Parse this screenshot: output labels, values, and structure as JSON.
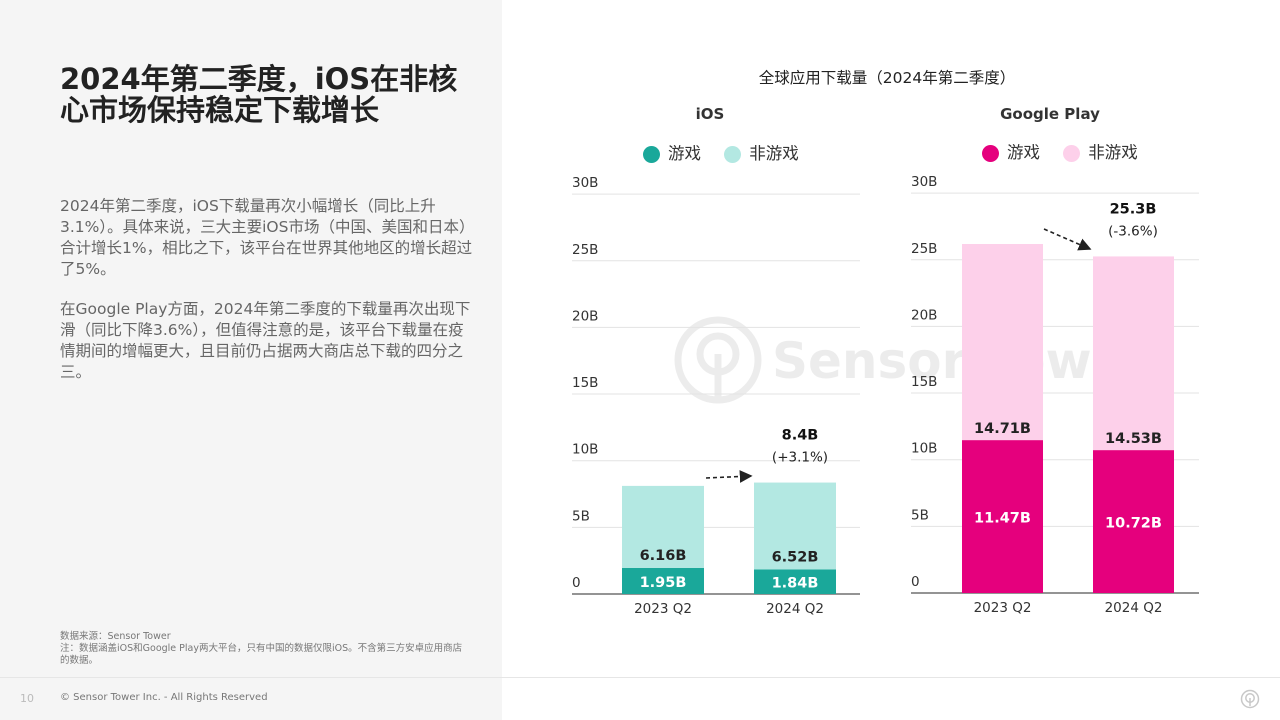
{
  "heading": "2024年第二季度，iOS在非核心市场保持稳定下载增长",
  "paragraphs": [
    "2024年第二季度，iOS下载量再次小幅增长（同比上升3.1%）。具体来说，三大主要iOS市场（中国、美国和日本）合计增长1%，相比之下，该平台在世界其他地区的增长超过了5%。",
    "在Google Play方面，2024年第二季度的下载量再次出现下滑（同比下降3.6%），但值得注意的是，该平台下载量在疫情期间的增幅更大，且目前仍占据两大商店总下载的四分之三。"
  ],
  "source_note": "数据来源：Sensor Tower",
  "footnote": "注：数据涵盖iOS和Google Play两大平台，只有中国的数据仅限iOS。不含第三方安卓应用商店的数据。",
  "footer": {
    "page_number": "10",
    "copyright": "© Sensor Tower Inc. - All Rights Reserved"
  },
  "watermark_text": "Sensor Tower",
  "chart_data": {
    "title": "全球应用下载量（2024年第二季度）",
    "type": "bar",
    "stacked": true,
    "unit": "B",
    "y_ticks": [
      "0",
      "5B",
      "10B",
      "15B",
      "20B",
      "25B",
      "30B"
    ],
    "panels": [
      {
        "name": "iOS",
        "categories": [
          "2023 Q2",
          "2024 Q2"
        ],
        "ylim": [
          0,
          30
        ],
        "series": [
          {
            "name": "游戏",
            "values": [
              1.95,
              1.84
            ],
            "labels": [
              "1.95B",
              "1.84B"
            ],
            "color": "#1aa89a"
          },
          {
            "name": "非游戏",
            "values": [
              6.16,
              6.52
            ],
            "labels": [
              "6.16B",
              "6.52B"
            ],
            "color": "#b3e8e2"
          }
        ],
        "total_annotation": {
          "value": "8.4B",
          "change": "(+3.1%)"
        }
      },
      {
        "name": "Google Play",
        "categories": [
          "2023 Q2",
          "2024 Q2"
        ],
        "ylim": [
          0,
          30
        ],
        "series": [
          {
            "name": "游戏",
            "values": [
              11.47,
              10.72
            ],
            "labels": [
              "11.47B",
              "10.72B"
            ],
            "color": "#e5007d"
          },
          {
            "name": "非游戏",
            "values": [
              14.71,
              14.53
            ],
            "labels": [
              "14.71B",
              "14.53B"
            ],
            "color": "#fdd0ea"
          }
        ],
        "total_annotation": {
          "value": "25.3B",
          "change": "(-3.6%)"
        }
      }
    ]
  }
}
